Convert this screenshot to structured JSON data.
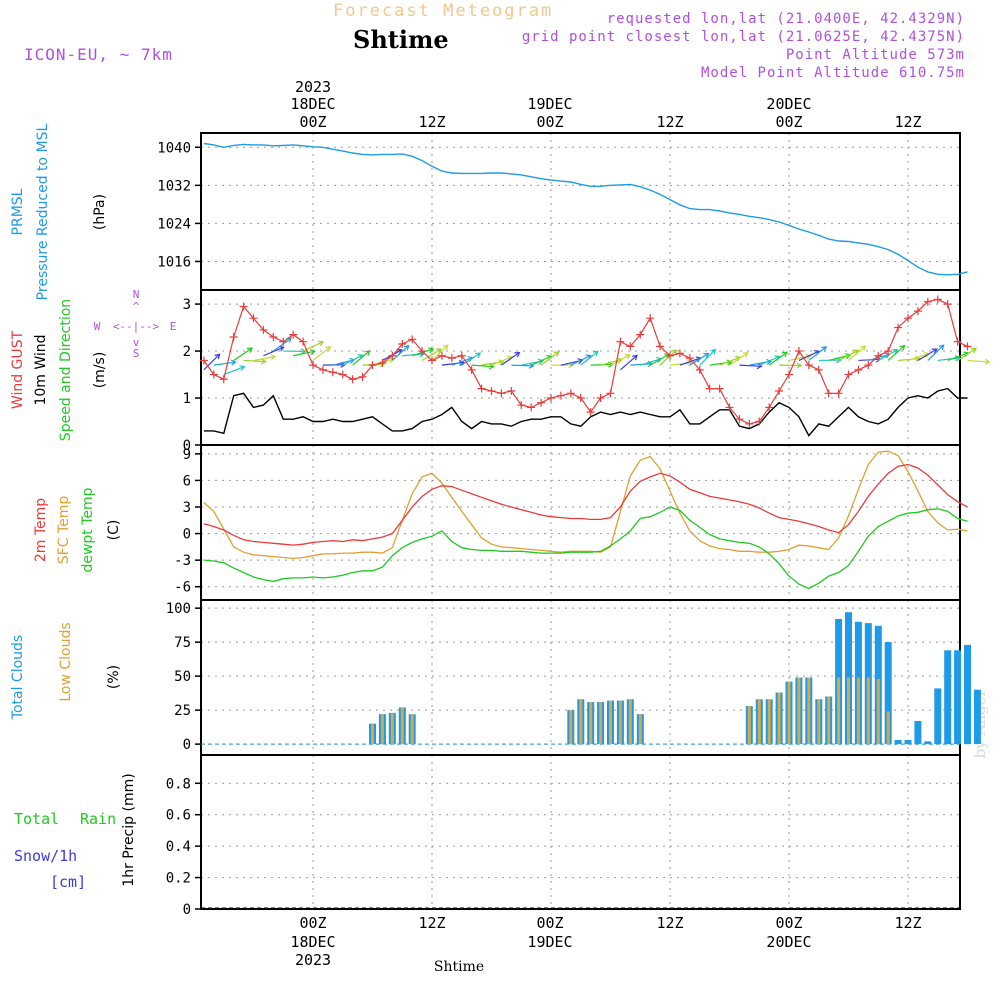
{
  "header": {
    "title": "Forecast Meteogram",
    "station": "Shtime",
    "model": "ICON-EU, ~ 7km",
    "requested": "requested lon,lat (21.0400E, 42.4329N)",
    "gridpoint": "grid point closest lon,lat (21.0625E, 42.4375N)",
    "point_alt": "Point Altitude 573m",
    "model_alt": "Model Point Altitude 610.75m"
  },
  "time_axis": {
    "year": "2023",
    "ticks": [
      {
        "hour": 0,
        "top": "00Z",
        "day": "18DEC"
      },
      {
        "hour": 12,
        "top": "12Z",
        "day": ""
      },
      {
        "hour": 24,
        "top": "00Z",
        "day": "19DEC"
      },
      {
        "hour": 36,
        "top": "12Z",
        "day": ""
      },
      {
        "hour": 48,
        "top": "00Z",
        "day": "20DEC"
      },
      {
        "hour": 60,
        "top": "12Z",
        "day": ""
      }
    ],
    "footer": "Shtime"
  },
  "watermark": "by Angel",
  "colors": {
    "pressure": "#1e9be6",
    "gust": "#e83c3c",
    "wind": "#000000",
    "direction": "#22c922",
    "temp": "#e83c3c",
    "sfc": "#e0a030",
    "dewpt": "#22c922",
    "total_clouds": "#1e9be6",
    "low_clouds": "#d8a848",
    "rain": "#22c922",
    "snow": "#3b3be0",
    "compass": "#b050e0"
  },
  "labels": {
    "pressure": [
      "PRMSL",
      "Pressure Reduced to MSL",
      "(hPa)"
    ],
    "wind": [
      "Wind GUST",
      "10m Wind",
      "Speed and Direction",
      "(m/s)"
    ],
    "compass": {
      "n": "N",
      "s": "S",
      "w": "W",
      "e": "E",
      "arrow_h": "<--|-->",
      "arrow_v_up": "^",
      "arrow_v_dn": "v"
    },
    "temp": [
      "2m Temp",
      "SFC Temp",
      "dewpt Temp",
      "(C)"
    ],
    "clouds": [
      "Total Clouds",
      "Low Clouds",
      "(%)"
    ],
    "precip": [
      "Total",
      "Rain",
      "Snow/1h",
      "[cm]",
      "1hr Precip (mm)"
    ]
  },
  "chart_data": [
    {
      "type": "line",
      "panel": "pressure",
      "ylabel": "(hPa)",
      "yticks": [
        1016,
        1024,
        1032,
        1040
      ],
      "ylim": [
        1010,
        1043
      ],
      "x_hours_start": -11,
      "x_hours_step": 1,
      "series": [
        {
          "name": "PRMSL",
          "values": [
            1040.8,
            1040.5,
            1040.0,
            1040.4,
            1040.6,
            1040.5,
            1040.5,
            1040.3,
            1040.4,
            1040.5,
            1040.3,
            1040.1,
            1040.0,
            1039.6,
            1039.2,
            1038.8,
            1038.5,
            1038.4,
            1038.5,
            1038.5,
            1038.6,
            1038.1,
            1037.2,
            1036.0,
            1035.0,
            1034.6,
            1034.5,
            1034.5,
            1034.5,
            1034.6,
            1034.6,
            1034.4,
            1034.2,
            1033.8,
            1033.4,
            1033.1,
            1032.9,
            1032.7,
            1032.2,
            1031.8,
            1031.8,
            1032.0,
            1032.1,
            1032.2,
            1031.7,
            1031.0,
            1030.1,
            1029.0,
            1027.9,
            1027.1,
            1026.9,
            1026.9,
            1026.6,
            1026.2,
            1025.9,
            1025.5,
            1025.2,
            1024.8,
            1024.3,
            1023.6,
            1022.8,
            1022.2,
            1021.5,
            1020.7,
            1020.3,
            1020.2,
            1019.9,
            1019.6,
            1019.1,
            1018.5,
            1017.5,
            1016.2,
            1014.8,
            1013.8,
            1013.3,
            1013.2,
            1013.3,
            1013.8
          ]
        }
      ]
    },
    {
      "type": "line",
      "panel": "wind",
      "ylabel": "(m/s)",
      "yticks": [
        0,
        1,
        2,
        3
      ],
      "ylim": [
        0,
        3.3
      ],
      "x_hours_start": -11,
      "x_hours_step": 1,
      "series": [
        {
          "name": "Wind GUST",
          "values": [
            1.8,
            1.5,
            1.4,
            2.3,
            2.95,
            2.7,
            2.45,
            2.3,
            2.2,
            2.35,
            2.2,
            1.7,
            1.6,
            1.55,
            1.5,
            1.4,
            1.45,
            1.7,
            1.75,
            1.9,
            2.15,
            2.25,
            2.0,
            1.8,
            1.9,
            1.85,
            1.9,
            1.6,
            1.2,
            1.15,
            1.1,
            1.15,
            0.85,
            0.8,
            0.9,
            1.0,
            1.05,
            1.1,
            1.0,
            0.7,
            1.0,
            1.1,
            2.2,
            2.1,
            2.35,
            2.7,
            2.1,
            1.9,
            1.95,
            1.85,
            1.6,
            1.2,
            1.2,
            0.8,
            0.55,
            0.45,
            0.5,
            0.8,
            1.15,
            1.5,
            2.0,
            1.7,
            1.6,
            1.1,
            1.1,
            1.5,
            1.6,
            1.7,
            1.9,
            2.0,
            2.5,
            2.7,
            2.85,
            3.05,
            3.1,
            3.0,
            2.2,
            2.1
          ]
        },
        {
          "name": "10m Wind",
          "values": [
            0.3,
            0.3,
            0.25,
            1.05,
            1.1,
            0.8,
            0.85,
            1.05,
            0.55,
            0.55,
            0.6,
            0.5,
            0.5,
            0.55,
            0.5,
            0.5,
            0.55,
            0.6,
            0.45,
            0.3,
            0.3,
            0.35,
            0.5,
            0.55,
            0.65,
            0.8,
            0.5,
            0.35,
            0.5,
            0.45,
            0.45,
            0.4,
            0.5,
            0.55,
            0.55,
            0.6,
            0.6,
            0.45,
            0.4,
            0.6,
            0.7,
            0.65,
            0.7,
            0.65,
            0.7,
            0.65,
            0.6,
            0.6,
            0.75,
            0.45,
            0.45,
            0.6,
            0.75,
            0.75,
            0.4,
            0.35,
            0.45,
            0.7,
            0.9,
            0.8,
            0.6,
            0.2,
            0.45,
            0.4,
            0.6,
            0.8,
            0.6,
            0.5,
            0.45,
            0.55,
            0.8,
            1.0,
            1.05,
            1.0,
            1.15,
            1.2,
            1.0,
            1.0
          ]
        },
        {
          "name": "Speed and Direction",
          "values": [
            1.6,
            1.7,
            1.5,
            1.8,
            1.8,
            1.8,
            1.9,
            2.0,
            2.0,
            1.9,
            2.0,
            1.8,
            1.7,
            1.7,
            1.7,
            1.7,
            1.7,
            1.7,
            1.8,
            1.8,
            1.9,
            1.9,
            1.8,
            1.8,
            1.7,
            1.7,
            1.7,
            1.7,
            1.7,
            1.7,
            1.7,
            1.7,
            1.7,
            1.7,
            1.7,
            1.7,
            1.7,
            1.7,
            1.7,
            1.7,
            1.7,
            1.7,
            1.6,
            1.7,
            1.7,
            1.7,
            1.7,
            1.7,
            1.7,
            1.7,
            1.7,
            1.7,
            1.7,
            1.7,
            1.7,
            1.7,
            1.7,
            1.7,
            1.7,
            1.8,
            1.8,
            1.8,
            1.8,
            1.8,
            1.8,
            1.8,
            1.8,
            1.8,
            1.8,
            1.8,
            1.8,
            1.8,
            1.8,
            1.8,
            1.8,
            1.8,
            1.8,
            1.8
          ]
        }
      ]
    },
    {
      "type": "line",
      "panel": "temperature",
      "ylabel": "(C)",
      "yticks": [
        -6,
        -3,
        0,
        3,
        6,
        9
      ],
      "ylim": [
        -7.5,
        10
      ],
      "x_hours_start": -11,
      "x_hours_step": 1,
      "series": [
        {
          "name": "2m Temp",
          "values": [
            1.1,
            0.8,
            0.4,
            -0.2,
            -0.7,
            -0.9,
            -1.0,
            -1.1,
            -1.2,
            -1.3,
            -1.2,
            -1.0,
            -0.9,
            -0.8,
            -0.9,
            -0.7,
            -0.8,
            -0.6,
            -0.4,
            0.0,
            1.5,
            3.0,
            4.2,
            5.0,
            5.4,
            5.3,
            4.9,
            4.5,
            4.1,
            3.7,
            3.3,
            3.0,
            2.7,
            2.4,
            2.1,
            1.9,
            1.8,
            1.7,
            1.7,
            1.6,
            1.6,
            1.8,
            3.0,
            4.8,
            5.9,
            6.4,
            6.8,
            6.5,
            5.8,
            5.0,
            4.6,
            4.2,
            4.0,
            3.8,
            3.6,
            3.3,
            2.9,
            2.3,
            1.8,
            1.6,
            1.4,
            1.1,
            0.8,
            0.4,
            0.1,
            1.0,
            2.5,
            4.2,
            5.6,
            6.8,
            7.6,
            7.8,
            7.4,
            6.6,
            5.5,
            4.4,
            3.6,
            3.0
          ]
        },
        {
          "name": "SFC Temp",
          "values": [
            3.5,
            2.5,
            0.5,
            -1.5,
            -2.1,
            -2.4,
            -2.5,
            -2.6,
            -2.7,
            -2.8,
            -2.7,
            -2.5,
            -2.3,
            -2.3,
            -2.2,
            -2.2,
            -2.1,
            -2.1,
            -2.2,
            -1.6,
            1.5,
            4.5,
            6.4,
            6.8,
            5.7,
            4.1,
            2.5,
            1.0,
            -0.5,
            -1.2,
            -1.5,
            -1.6,
            -1.7,
            -1.8,
            -1.9,
            -2.0,
            -2.1,
            -2.0,
            -2.0,
            -2.0,
            -2.1,
            -1.5,
            2.5,
            6.5,
            8.3,
            8.7,
            7.3,
            4.8,
            2.3,
            0.3,
            -0.8,
            -1.4,
            -1.7,
            -1.8,
            -2.0,
            -2.0,
            -2.1,
            -2.1,
            -2.0,
            -1.8,
            -1.3,
            -1.4,
            -1.6,
            -1.8,
            -0.5,
            2.0,
            5.0,
            7.8,
            9.2,
            9.3,
            8.8,
            7.0,
            4.8,
            2.5,
            1.2,
            0.4,
            0.5,
            0.3
          ]
        },
        {
          "name": "dewpt Temp",
          "values": [
            -3.0,
            -3.1,
            -3.3,
            -3.9,
            -4.4,
            -4.9,
            -5.2,
            -5.4,
            -5.1,
            -5.0,
            -5.0,
            -4.9,
            -5.0,
            -4.9,
            -4.7,
            -4.4,
            -4.2,
            -4.2,
            -3.8,
            -2.5,
            -1.6,
            -1.0,
            -0.6,
            -0.3,
            0.3,
            -0.9,
            -1.6,
            -1.8,
            -1.9,
            -1.9,
            -2.0,
            -2.0,
            -2.0,
            -2.1,
            -2.2,
            -2.2,
            -2.2,
            -2.1,
            -2.1,
            -2.1,
            -2.0,
            -1.4,
            -0.6,
            0.3,
            1.7,
            1.9,
            2.4,
            3.0,
            2.6,
            1.5,
            0.7,
            -0.1,
            -0.6,
            -0.8,
            -1.0,
            -1.1,
            -1.5,
            -2.3,
            -3.4,
            -4.8,
            -5.7,
            -6.2,
            -5.6,
            -4.8,
            -4.4,
            -3.6,
            -2.0,
            -0.3,
            0.8,
            1.4,
            2.0,
            2.3,
            2.4,
            2.7,
            2.8,
            2.5,
            1.7,
            1.4
          ]
        }
      ]
    },
    {
      "type": "bar",
      "panel": "clouds",
      "ylabel": "(%)",
      "yticks": [
        0,
        25,
        50,
        75,
        100
      ],
      "ylim": [
        -8,
        106
      ],
      "x_hours_start": -11,
      "x_hours_step": 1,
      "series": [
        {
          "name": "Total Clouds",
          "values": [
            0,
            0,
            0,
            0,
            0,
            0,
            0,
            0,
            0,
            0,
            0,
            0,
            0,
            0,
            0,
            0,
            0,
            15,
            22,
            23,
            27,
            22,
            0,
            0,
            0,
            0,
            0,
            0,
            0,
            0,
            0,
            0,
            0,
            0,
            0,
            0,
            0,
            25,
            33,
            31,
            31,
            32,
            32,
            33,
            22,
            0,
            0,
            0,
            0,
            0,
            0,
            0,
            0,
            0,
            0,
            28,
            33,
            33,
            38,
            46,
            49,
            49,
            33,
            35,
            92,
            97,
            90,
            89,
            87,
            75,
            3,
            3,
            17,
            2,
            41,
            69,
            69,
            73,
            40
          ]
        },
        {
          "name": "Low Clouds",
          "values": [
            0,
            0,
            0,
            0,
            0,
            0,
            0,
            0,
            0,
            0,
            0,
            0,
            0,
            0,
            0,
            0,
            0,
            15,
            22,
            23,
            27,
            22,
            0,
            0,
            0,
            0,
            0,
            0,
            0,
            0,
            0,
            0,
            0,
            0,
            0,
            0,
            0,
            25,
            33,
            31,
            31,
            32,
            32,
            33,
            22,
            0,
            0,
            0,
            0,
            0,
            0,
            0,
            0,
            0,
            0,
            28,
            33,
            33,
            38,
            46,
            49,
            49,
            33,
            35,
            49,
            49,
            49,
            49,
            48,
            24,
            0,
            0,
            0,
            0,
            0,
            0,
            0,
            0,
            0
          ]
        }
      ]
    },
    {
      "type": "bar",
      "panel": "precip",
      "ylabel": "1hr Precip (mm)",
      "yticks": [
        0,
        0.2,
        0.4,
        0.6,
        0.8
      ],
      "ylim": [
        0,
        0.98
      ],
      "series": [
        {
          "name": "Total Rain",
          "values": []
        },
        {
          "name": "Snow/1h",
          "values": []
        }
      ]
    }
  ]
}
